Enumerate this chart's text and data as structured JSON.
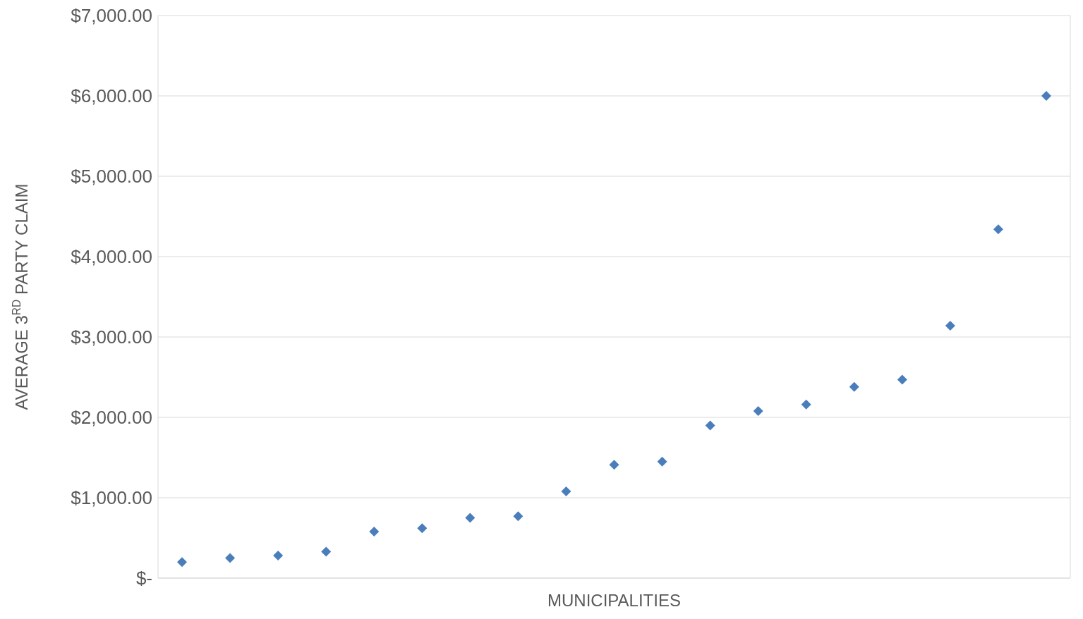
{
  "chart_data": {
    "type": "scatter",
    "xlabel": "MUNICIPALITIES",
    "ylabel": "AVERAGE 3$^{RD}$ PARTY CLAIM",
    "categories": [
      null,
      null,
      null,
      null,
      null,
      null,
      null,
      null,
      null,
      null,
      null,
      null,
      null,
      null,
      null,
      null,
      null,
      null,
      null
    ],
    "series": [
      {
        "color": "#4a7ebb",
        "values": [
          200,
          250,
          280,
          330,
          580,
          620,
          750,
          770,
          1080,
          1410,
          1450,
          1900,
          2080,
          2160,
          2380,
          2470,
          3140,
          4340,
          6000
        ]
      }
    ],
    "ylim": [
      0,
      7000
    ],
    "yticks": [
      {
        "value": 0,
        "label": "$-"
      },
      {
        "value": 1000,
        "label": "$1,000.00"
      },
      {
        "value": 2000,
        "label": "$2,000.00"
      },
      {
        "value": 3000,
        "label": "$3,000.00"
      },
      {
        "value": 4000,
        "label": "$4,000.00"
      },
      {
        "value": 5000,
        "label": "$5,000.00"
      },
      {
        "value": 6000,
        "label": "$6,000.00"
      },
      {
        "value": 7000,
        "label": "$7,000.00"
      }
    ],
    "grid": true,
    "marker": "diamond",
    "tick_labels": "y"
  }
}
